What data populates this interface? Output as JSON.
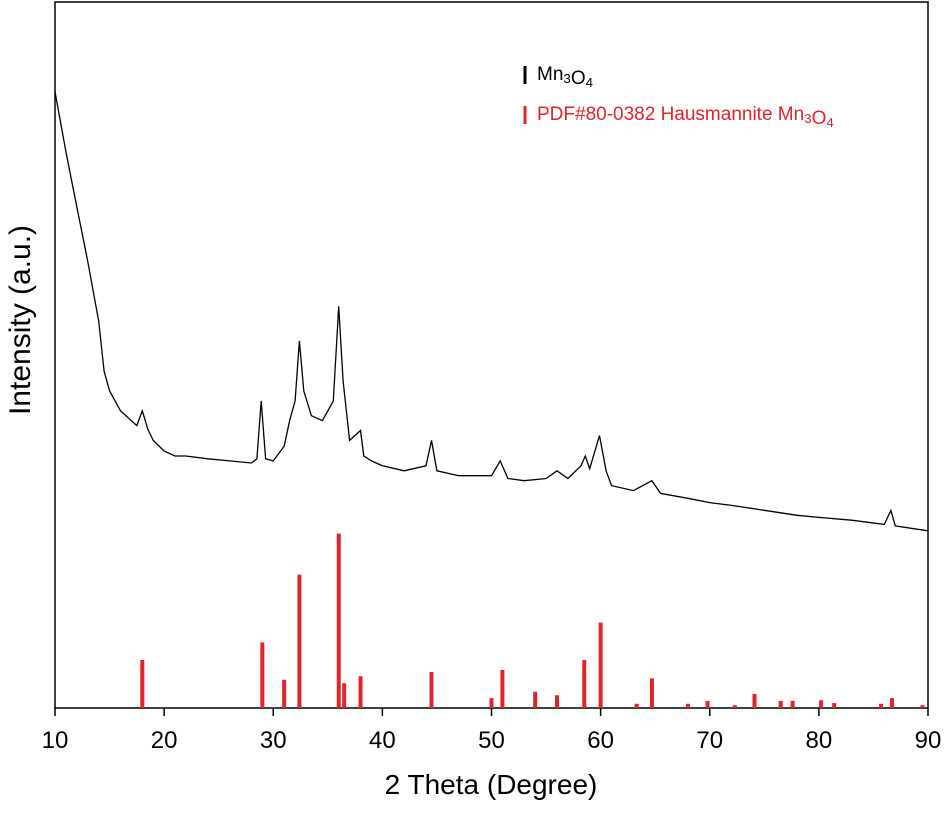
{
  "chart_data": {
    "type": "line",
    "x_label": "2 Theta (Degree)",
    "y_label": "Intensity (a.u.)",
    "xlim": [
      10,
      90
    ],
    "xticks": [
      10,
      20,
      30,
      40,
      50,
      60,
      70,
      80,
      90
    ],
    "ylim": [
      0,
      100
    ],
    "grid": false,
    "legend": "upper right",
    "series": [
      {
        "name": "Mn3O4",
        "type": "line",
        "color": "#000000",
        "x": [
          10,
          11,
          12,
          13,
          14,
          14.5,
          15,
          16,
          17,
          17.5,
          18,
          18.5,
          19,
          20,
          21,
          22,
          24,
          26,
          28,
          28.5,
          28.9,
          29.3,
          30,
          31,
          31.5,
          32,
          32.4,
          32.8,
          33.5,
          34.5,
          35.5,
          36,
          36.4,
          37,
          38,
          38.3,
          39,
          40,
          42,
          44,
          44.5,
          45,
          47,
          50,
          50.8,
          51.5,
          53,
          55,
          56,
          57,
          58.2,
          58.6,
          59,
          59.9,
          60.5,
          61,
          63,
          64.7,
          65.5,
          68,
          70,
          72,
          75,
          78,
          80,
          83,
          86,
          86.6,
          87,
          90
        ],
        "values": [
          87.3,
          78.8,
          71.0,
          63.3,
          54.8,
          47.7,
          44.9,
          42.1,
          40.7,
          40.0,
          42.1,
          39.5,
          37.9,
          36.4,
          35.7,
          35.7,
          35.3,
          35.0,
          34.7,
          35.3,
          43.5,
          35.3,
          35.0,
          37.1,
          40.7,
          43.5,
          52.0,
          44.9,
          41.4,
          40.7,
          43.5,
          56.9,
          46.3,
          37.9,
          39.3,
          35.7,
          35.0,
          34.3,
          33.6,
          34.3,
          37.9,
          33.6,
          32.9,
          32.9,
          35.0,
          32.5,
          32.2,
          32.5,
          33.6,
          32.5,
          34.3,
          35.7,
          33.9,
          38.6,
          33.6,
          31.5,
          30.8,
          32.2,
          30.4,
          29.7,
          29.1,
          28.7,
          28.0,
          27.3,
          27.0,
          26.6,
          26.0,
          28.0,
          25.8,
          25.1
        ]
      },
      {
        "name": "PDF#80-0382 Hausmannite Mn3O4",
        "type": "stick",
        "color": "#e0242b",
        "x": [
          18,
          29,
          31,
          32.4,
          36,
          36.5,
          38,
          44.5,
          50,
          51,
          54,
          56,
          58.5,
          60,
          63.3,
          64.7,
          68,
          69.8,
          72.3,
          74.1,
          76.5,
          77.6,
          80.2,
          81.4,
          85.7,
          86.7,
          89.5
        ],
        "values": [
          6.8,
          9.3,
          4.0,
          18.9,
          24.7,
          3.5,
          4.5,
          5.1,
          1.4,
          5.4,
          2.3,
          1.8,
          6.8,
          12.1,
          0.6,
          4.2,
          0.6,
          1.0,
          0.4,
          2.0,
          1.0,
          1.0,
          1.1,
          0.7,
          0.6,
          1.4,
          0.4
        ]
      }
    ]
  }
}
